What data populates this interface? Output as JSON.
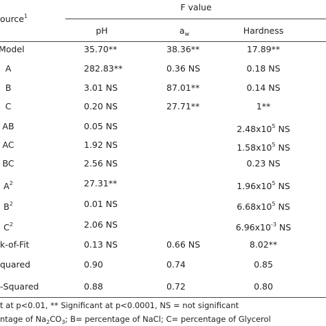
{
  "header": {
    "source": [
      {
        "text": "ource"
      },
      {
        "text": "1",
        "pos": "sup"
      }
    ],
    "group": "F value",
    "columns": [
      [
        {
          "text": "pH"
        }
      ],
      [
        {
          "text": "a"
        },
        {
          "text": "w",
          "pos": "sub"
        }
      ],
      [
        {
          "text": "Hardness"
        }
      ]
    ]
  },
  "table": {
    "rows": [
      [
        [
          {
            "text": "Model"
          }
        ],
        [
          {
            "text": "35.70**"
          }
        ],
        [
          {
            "text": "38.36**"
          }
        ],
        [
          {
            "text": "17.89**"
          }
        ]
      ],
      [
        [
          {
            "text": "A"
          }
        ],
        [
          {
            "text": "282.83**"
          }
        ],
        [
          {
            "text": "0.36 NS"
          }
        ],
        [
          {
            "text": "0.18 NS"
          }
        ]
      ],
      [
        [
          {
            "text": "B"
          }
        ],
        [
          {
            "text": "3.01 NS"
          }
        ],
        [
          {
            "text": "87.01**"
          }
        ],
        [
          {
            "text": "0.14 NS"
          }
        ]
      ],
      [
        [
          {
            "text": "C"
          }
        ],
        [
          {
            "text": "0.20 NS"
          }
        ],
        [
          {
            "text": "27.71**"
          }
        ],
        [
          {
            "text": "1**"
          }
        ]
      ],
      [
        [
          {
            "text": "AB"
          }
        ],
        [
          {
            "text": "0.05 NS"
          }
        ],
        null,
        [
          {
            "text": "2.48x10"
          },
          {
            "text": "5",
            "pos": "sup"
          },
          {
            "text": "NS",
            "pos": "after"
          }
        ]
      ],
      [
        [
          {
            "text": "AC"
          }
        ],
        [
          {
            "text": "1.92 NS"
          }
        ],
        null,
        [
          {
            "text": "1.58x10"
          },
          {
            "text": "5",
            "pos": "sup"
          },
          {
            "text": "NS",
            "pos": "after"
          }
        ]
      ],
      [
        [
          {
            "text": "BC"
          }
        ],
        [
          {
            "text": "2.56 NS"
          }
        ],
        null,
        [
          {
            "text": "0.23 NS"
          }
        ]
      ],
      [
        [
          {
            "text": "A"
          },
          {
            "text": "2",
            "pos": "sup"
          }
        ],
        [
          {
            "text": "27.31**"
          }
        ],
        null,
        [
          {
            "text": "1.96x10"
          },
          {
            "text": "5",
            "pos": "sup"
          },
          {
            "text": "NS",
            "pos": "after"
          }
        ]
      ],
      [
        [
          {
            "text": "B"
          },
          {
            "text": "2",
            "pos": "sup"
          }
        ],
        [
          {
            "text": "0.01 NS"
          }
        ],
        null,
        [
          {
            "text": "6.68x10"
          },
          {
            "text": "5",
            "pos": "sup"
          },
          {
            "text": "NS",
            "pos": "after"
          }
        ]
      ],
      [
        [
          {
            "text": "C"
          },
          {
            "text": "2",
            "pos": "sup"
          }
        ],
        [
          {
            "text": "2.06 NS"
          }
        ],
        null,
        [
          {
            "text": "6.96x10"
          },
          {
            "text": "-3",
            "pos": "sup"
          },
          {
            "text": "NS",
            "pos": "after"
          }
        ]
      ],
      [
        [
          {
            "text": "k-of-Fit"
          }
        ],
        [
          {
            "text": "0.13 NS"
          }
        ],
        [
          {
            "text": "0.66 NS"
          }
        ],
        [
          {
            "text": "8.02**"
          }
        ]
      ],
      [
        [
          {
            "text": "quared"
          }
        ],
        [
          {
            "text": "0.90"
          }
        ],
        [
          {
            "text": "0.74"
          }
        ],
        [
          {
            "text": "0.85"
          }
        ]
      ],
      [
        [
          {
            "text": "-Squared"
          }
        ],
        [
          {
            "text": "0.88"
          }
        ],
        [
          {
            "text": "0.72"
          }
        ],
        [
          {
            "text": "0.80"
          }
        ]
      ]
    ]
  },
  "footnotes": [
    [
      {
        "text": "t at p<0.01, ** Significant at p<0.0001, NS = not significant"
      }
    ],
    [
      {
        "text": "ntage of Na"
      },
      {
        "text": "2",
        "pos": "sub"
      },
      {
        "text": "CO"
      },
      {
        "text": "3",
        "pos": "sub"
      },
      {
        "text": "; B= percentage of NaCl; C= percentage of Glycerol"
      }
    ]
  ]
}
